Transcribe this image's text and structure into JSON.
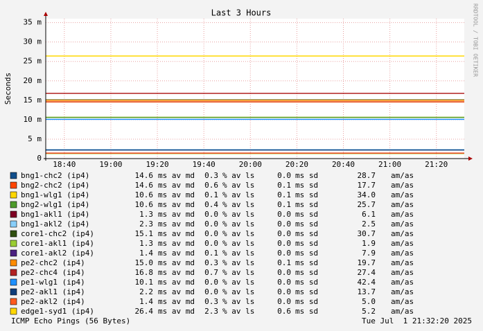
{
  "chart_data": {
    "type": "line",
    "title": "Last 3 Hours",
    "y_label": "Seconds",
    "side_label": "RRDTOOL / TOBI OETIKER",
    "xlim": [
      1112,
      1292
    ],
    "xticks": [
      {
        "value": 1120,
        "label": "18:40"
      },
      {
        "value": 1140,
        "label": "19:00"
      },
      {
        "value": 1160,
        "label": "19:20"
      },
      {
        "value": 1180,
        "label": "19:40"
      },
      {
        "value": 1200,
        "label": "20:00"
      },
      {
        "value": 1220,
        "label": "20:20"
      },
      {
        "value": 1240,
        "label": "20:40"
      },
      {
        "value": 1260,
        "label": "21:00"
      },
      {
        "value": 1280,
        "label": "21:20"
      }
    ],
    "ylim": [
      0,
      36
    ],
    "yticks": [
      0,
      {
        "value": 5,
        "label": "5 m"
      },
      {
        "value": 10,
        "label": "10 m"
      },
      {
        "value": 15,
        "label": "15 m"
      },
      {
        "value": 20,
        "label": "20 m"
      },
      {
        "value": 25,
        "label": "25 m"
      },
      {
        "value": 30,
        "label": "30 m"
      },
      {
        "value": 35,
        "label": "35 m"
      }
    ],
    "grid": true,
    "units": [
      "ms av md",
      "% av ls",
      "ms sd",
      "am/as"
    ],
    "series": [
      {
        "name": "bng1-chc2 (ip4)",
        "color": "#104e8b",
        "median": "14.6",
        "loss": "0.3",
        "sd": "0.0",
        "amas": "28.7"
      },
      {
        "name": "bng2-chc2 (ip4)",
        "color": "#ff4500",
        "median": "14.6",
        "loss": "0.6",
        "sd": "0.1",
        "amas": "17.7"
      },
      {
        "name": "bng1-wlg1 (ip4)",
        "color": "#ffd700",
        "median": "10.6",
        "loss": "0.1",
        "sd": "0.1",
        "amas": "34.0"
      },
      {
        "name": "bng2-wlg1 (ip4)",
        "color": "#4d9b2a",
        "median": "10.6",
        "loss": "0.4",
        "sd": "0.1",
        "amas": "25.7"
      },
      {
        "name": "bng1-akl1 (ip4)",
        "color": "#7f0023",
        "median": "1.3",
        "loss": "0.0",
        "sd": "0.0",
        "amas": "6.1"
      },
      {
        "name": "bng1-akl2 (ip4)",
        "color": "#87cefa",
        "median": "2.3",
        "loss": "0.0",
        "sd": "0.0",
        "amas": "2.5"
      },
      {
        "name": "core1-chc2 (ip4)",
        "color": "#2f4f0f",
        "median": "15.1",
        "loss": "0.0",
        "sd": "0.0",
        "amas": "30.7"
      },
      {
        "name": "core1-akl1 (ip4)",
        "color": "#9acd32",
        "median": "1.3",
        "loss": "0.0",
        "sd": "0.0",
        "amas": "1.9"
      },
      {
        "name": "core1-akl2 (ip4)",
        "color": "#4b2080",
        "median": "1.4",
        "loss": "0.1",
        "sd": "0.0",
        "amas": "7.9"
      },
      {
        "name": "pe2-chc2 (ip4)",
        "color": "#ff8c00",
        "median": "15.0",
        "loss": "0.3",
        "sd": "0.1",
        "amas": "19.7"
      },
      {
        "name": "pe2-chc4 (ip4)",
        "color": "#b22222",
        "median": "16.8",
        "loss": "0.7",
        "sd": "0.0",
        "amas": "27.4"
      },
      {
        "name": "pe1-wlg1 (ip4)",
        "color": "#1e90ff",
        "median": "10.1",
        "loss": "0.0",
        "sd": "0.0",
        "amas": "42.4"
      },
      {
        "name": "pe2-akl1 (ip4)",
        "color": "#0d3d7a",
        "median": "2.2",
        "loss": "0.0",
        "sd": "0.0",
        "amas": "13.7"
      },
      {
        "name": "pe2-akl2 (ip4)",
        "color": "#ff5a1e",
        "median": "1.4",
        "loss": "0.3",
        "sd": "0.0",
        "amas": "5.0"
      },
      {
        "name": "edge1-syd1 (ip4)",
        "color": "#ffd700",
        "median": "26.4",
        "loss": "2.3",
        "sd": "0.6",
        "amas": "5.2"
      }
    ],
    "footer_left": "ICMP Echo Pings (56 Bytes)",
    "footer_right": "Tue Jul  1 21:32:20 2025"
  }
}
